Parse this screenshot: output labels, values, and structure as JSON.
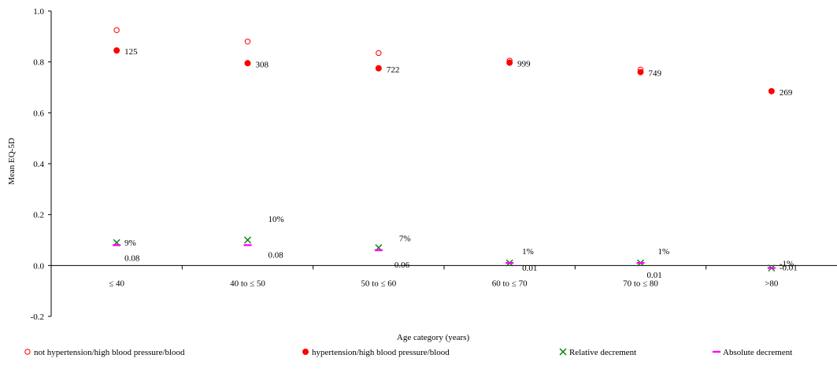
{
  "chart_data": {
    "type": "scatter",
    "title": "",
    "xlabel": "Age category (years)",
    "ylabel": "Mean EQ-5D",
    "ylim": [
      -0.2,
      1.0
    ],
    "yticks": [
      "-0.2",
      "0.0",
      "0.2",
      "0.4",
      "0.6",
      "0.8",
      "1.0"
    ],
    "ytick_values": [
      -0.2,
      0.0,
      0.2,
      0.4,
      0.6,
      0.8,
      1.0
    ],
    "categories": [
      "≤ 40",
      "40 to ≤ 50",
      "50 to ≤ 60",
      "60 to ≤ 70",
      "70 to ≤ 80",
      ">80"
    ],
    "grid": false,
    "legend_position": "bottom",
    "series": [
      {
        "name": "not hypertension/high blood pressure/blood",
        "marker": "open-circle",
        "color": "#ff0000",
        "values": [
          0.925,
          0.88,
          0.835,
          0.805,
          0.77,
          null
        ]
      },
      {
        "name": "hypertension/high blood pressure/blood",
        "marker": "filled-circle",
        "color": "#ff0000",
        "values": [
          0.845,
          0.795,
          0.775,
          0.797,
          0.76,
          0.685
        ],
        "labels": [
          "125",
          "308",
          "722",
          "999",
          "749",
          "269"
        ]
      },
      {
        "name": "Relative decrement",
        "marker": "x",
        "color": "#008000",
        "values": [
          0.09,
          0.1,
          0.07,
          0.01,
          0.01,
          -0.01
        ],
        "labels": [
          "9%",
          "10%",
          "7%",
          "1%",
          "1%",
          "-1%"
        ]
      },
      {
        "name": "Absolute decrement",
        "marker": "dash",
        "color": "#ff00ff",
        "values": [
          0.08,
          0.08,
          0.06,
          0.01,
          0.01,
          -0.01
        ],
        "labels": [
          "0.08",
          "0.08",
          "0.06",
          "0.01",
          "0.01",
          "-0.01"
        ]
      }
    ]
  }
}
